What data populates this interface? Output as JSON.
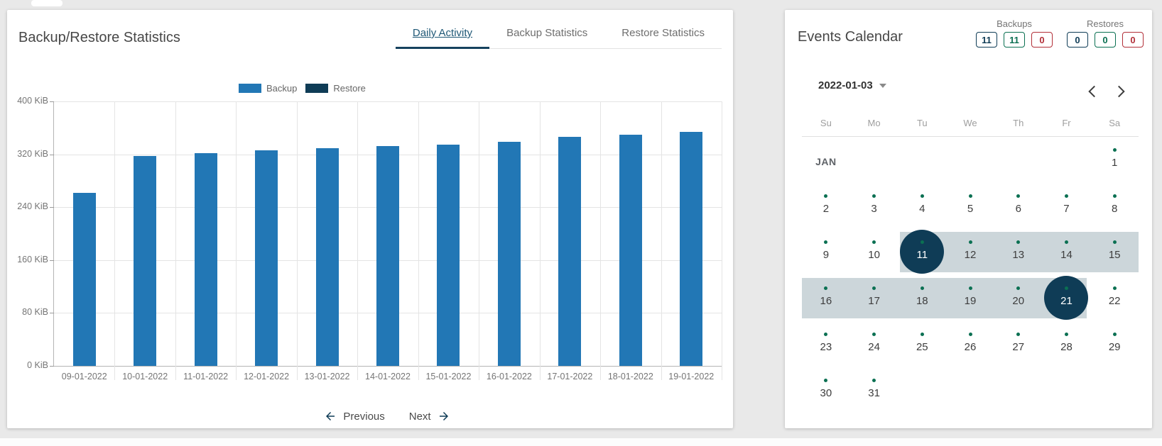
{
  "colors": {
    "navy": "#0f3c56",
    "green": "#0b7052",
    "red": "#b22f38",
    "bar_blue": "#2277b5",
    "range_band": "#ccd6da"
  },
  "left_panel": {
    "title": "Backup/Restore Statistics",
    "tabs": [
      {
        "label": "Daily Activity",
        "active": true
      },
      {
        "label": "Backup Statistics",
        "active": false
      },
      {
        "label": "Restore Statistics",
        "active": false
      }
    ],
    "pagination": {
      "previous_label": "Previous",
      "next_label": "Next"
    }
  },
  "chart_data": {
    "type": "bar",
    "title": "Daily Activity",
    "categories": [
      "09-01-2022",
      "10-01-2022",
      "11-01-2022",
      "12-01-2022",
      "13-01-2022",
      "14-01-2022",
      "15-01-2022",
      "16-01-2022",
      "17-01-2022",
      "18-01-2022",
      "19-01-2022"
    ],
    "series": [
      {
        "name": "Backup",
        "color": "#2277b5",
        "values": [
          262,
          317,
          322,
          326,
          329,
          332,
          335,
          339,
          346,
          350,
          354
        ]
      },
      {
        "name": "Restore",
        "color": "#0f3c56",
        "values": [
          0,
          0,
          0,
          0,
          0,
          0,
          0,
          0,
          0,
          0,
          0
        ]
      }
    ],
    "xlabel": "",
    "ylabel": "",
    "ylim": [
      0,
      400
    ],
    "yticks": [
      {
        "value": 0,
        "label": "0 KiB"
      },
      {
        "value": 80,
        "label": "80 KiB"
      },
      {
        "value": 160,
        "label": "160 KiB"
      },
      {
        "value": 240,
        "label": "240 KiB"
      },
      {
        "value": 320,
        "label": "320 KiB"
      },
      {
        "value": 400,
        "label": "400 KiB"
      }
    ],
    "grid": true,
    "legend_position": "top"
  },
  "right_panel": {
    "title": "Events Calendar",
    "counters": [
      {
        "label": "Backups",
        "boxes": [
          {
            "value": "11",
            "color_key": "navy"
          },
          {
            "value": "11",
            "color_key": "green"
          },
          {
            "value": "0",
            "color_key": "red"
          }
        ]
      },
      {
        "label": "Restores",
        "boxes": [
          {
            "value": "0",
            "color_key": "navy"
          },
          {
            "value": "0",
            "color_key": "green"
          },
          {
            "value": "0",
            "color_key": "red"
          }
        ]
      }
    ],
    "date_selector": {
      "value": "2022-01-03"
    },
    "calendar": {
      "weekdays": [
        "Su",
        "Mo",
        "Tu",
        "We",
        "Th",
        "Fr",
        "Sa"
      ],
      "month_label": "JAN",
      "rows": [
        [
          null,
          null,
          null,
          null,
          null,
          null,
          1
        ],
        [
          2,
          3,
          4,
          5,
          6,
          7,
          8
        ],
        [
          9,
          10,
          11,
          12,
          13,
          14,
          15
        ],
        [
          16,
          17,
          18,
          19,
          20,
          21,
          22
        ],
        [
          23,
          24,
          25,
          26,
          27,
          28,
          29
        ],
        [
          30,
          31,
          null,
          null,
          null,
          null,
          null
        ]
      ],
      "event_days": [
        1,
        2,
        3,
        4,
        5,
        6,
        7,
        8,
        9,
        10,
        11,
        12,
        13,
        14,
        15,
        16,
        17,
        18,
        19,
        20,
        21,
        22,
        23,
        24,
        25,
        26,
        27,
        28,
        29,
        30,
        31
      ],
      "selected_range": {
        "start": 11,
        "end": 21
      }
    }
  }
}
